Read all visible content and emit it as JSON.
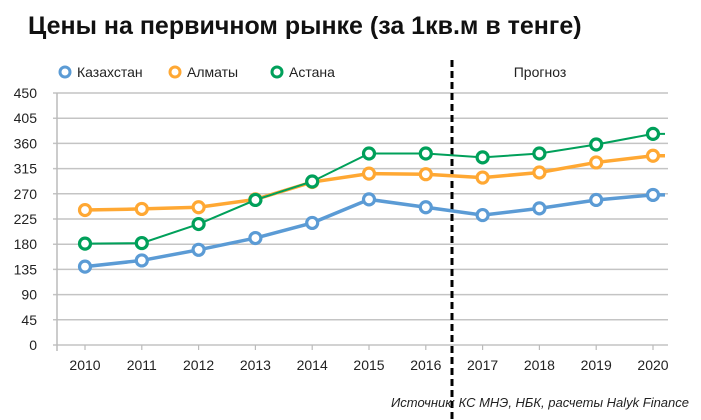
{
  "title": "Цены на первичном рынке (за 1кв.м в тенге)",
  "source": "Источник: КС МНЭ, НБК, расчеты Halyk Finance",
  "chart_data": {
    "type": "line",
    "title": "Цены на первичном рынке (за 1кв.м в тенге)",
    "categories": [
      "2010",
      "2011",
      "2012",
      "2013",
      "2014",
      "2015",
      "2016",
      "2017",
      "2018",
      "2019",
      "2020"
    ],
    "ylim": [
      0,
      450
    ],
    "yticks": [
      "0",
      "45",
      "90",
      "135",
      "180",
      "225",
      "270",
      "315",
      "360",
      "405",
      "450"
    ],
    "grid": true,
    "legend_position": "top-left",
    "annotation": "Прогноз",
    "forecast_from": "2017",
    "series": [
      {
        "name": "Казахстан",
        "color": "#5B9BD5",
        "values": [
          140,
          151,
          170,
          191,
          218,
          260,
          246,
          232,
          244,
          259,
          268
        ]
      },
      {
        "name": "Алматы",
        "color": "#FFA833",
        "values": [
          241,
          243,
          246,
          260,
          291,
          306,
          305,
          299,
          308,
          326,
          338
        ]
      },
      {
        "name": "Астана",
        "color": "#00A05A",
        "values": [
          181,
          182,
          216,
          259,
          292,
          342,
          342,
          335,
          342,
          358,
          377
        ]
      }
    ]
  }
}
